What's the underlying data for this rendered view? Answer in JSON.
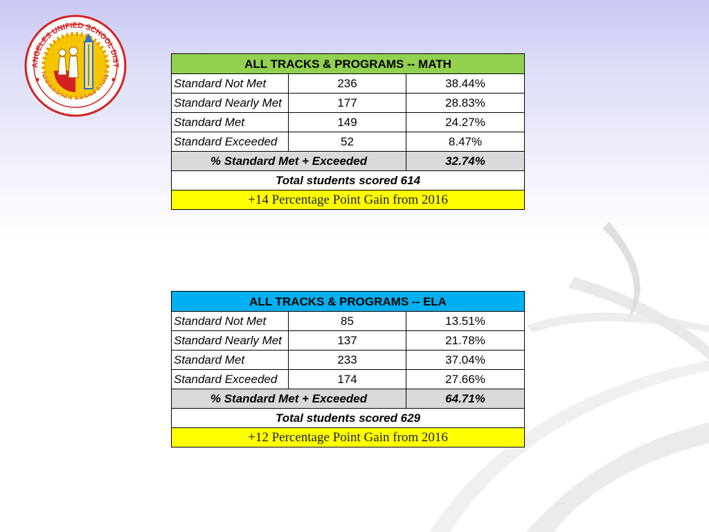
{
  "logo": {
    "ring_top_text": "LOS ANGELES UNIFIED SCHOOL DISTRICT",
    "ring_bottom_text": "BOARD OF EDUCATION",
    "colors": {
      "ring": "#d42020",
      "fill": "#f7c500",
      "accent": "#d42020"
    }
  },
  "math": {
    "title": "ALL TRACKS & PROGRAMS -- MATH",
    "rows": [
      {
        "label": "Standard Not Met",
        "count": "236",
        "percent": "38.44%"
      },
      {
        "label": "Standard Nearly Met",
        "count": "177",
        "percent": "28.83%"
      },
      {
        "label": "Standard Met",
        "count": "149",
        "percent": "24.27%"
      },
      {
        "label": "Standard Exceeded",
        "count": "52",
        "percent": "8.47%"
      }
    ],
    "met_exceeded_label": "% Standard Met + Exceeded",
    "met_exceeded_value": "32.74%",
    "total": "Total students scored 614",
    "gain": "+14 Percentage Point Gain from 2016",
    "header_color": "#92d050"
  },
  "ela": {
    "title": "ALL TRACKS & PROGRAMS -- ELA",
    "rows": [
      {
        "label": "Standard Not Met",
        "count": "85",
        "percent": "13.51%"
      },
      {
        "label": "Standard Nearly Met",
        "count": "137",
        "percent": "21.78%"
      },
      {
        "label": "Standard Met",
        "count": "233",
        "percent": "37.04%"
      },
      {
        "label": "Standard Exceeded",
        "count": "174",
        "percent": "27.66%"
      }
    ],
    "met_exceeded_label": "% Standard Met + Exceeded",
    "met_exceeded_value": "64.71%",
    "total": "Total students scored 629",
    "gain": "+12 Percentage Point Gain from 2016",
    "header_color": "#00b0f0"
  },
  "colors": {
    "summary_row": "#d9d9d9",
    "gain_row": "#ffff00"
  }
}
